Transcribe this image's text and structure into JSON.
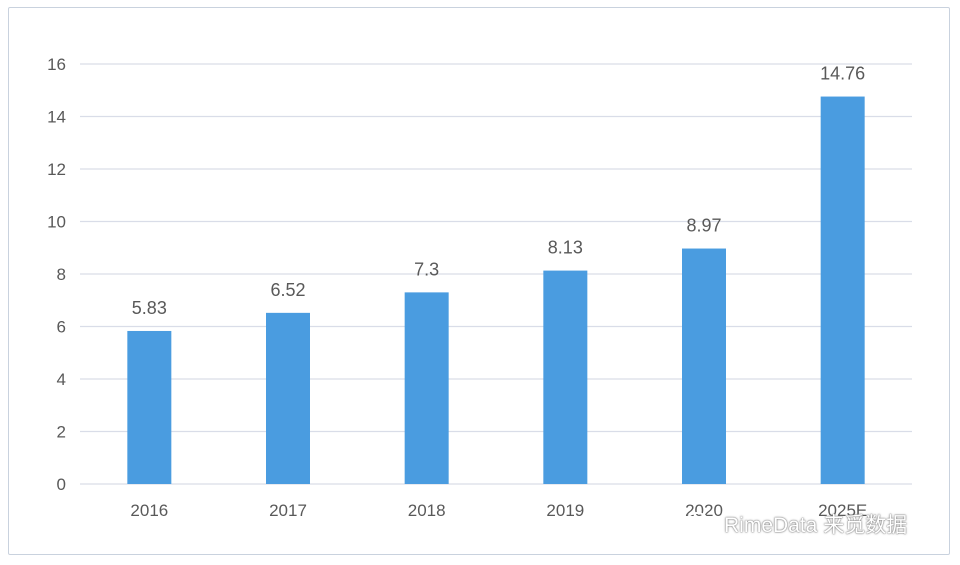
{
  "chart_data": {
    "type": "bar",
    "categories": [
      "2016",
      "2017",
      "2018",
      "2019",
      "2020",
      "2025E"
    ],
    "values": [
      5.83,
      6.52,
      7.3,
      8.13,
      8.97,
      14.76
    ],
    "data_labels": [
      "5.83",
      "6.52",
      "7.3",
      "8.13",
      "8.97",
      "14.76"
    ],
    "title": "",
    "xlabel": "",
    "ylabel": "",
    "ylim": [
      0,
      16
    ],
    "yticks": [
      "0",
      "2",
      "4",
      "6",
      "8",
      "10",
      "12",
      "14",
      "16"
    ],
    "grid": true,
    "legend": "none",
    "bar_color": "#4a9ce0",
    "grid_color": "#d9dde8"
  },
  "watermark": {
    "text": "RimeData 来觅数据",
    "icon": "wechat-icon"
  }
}
